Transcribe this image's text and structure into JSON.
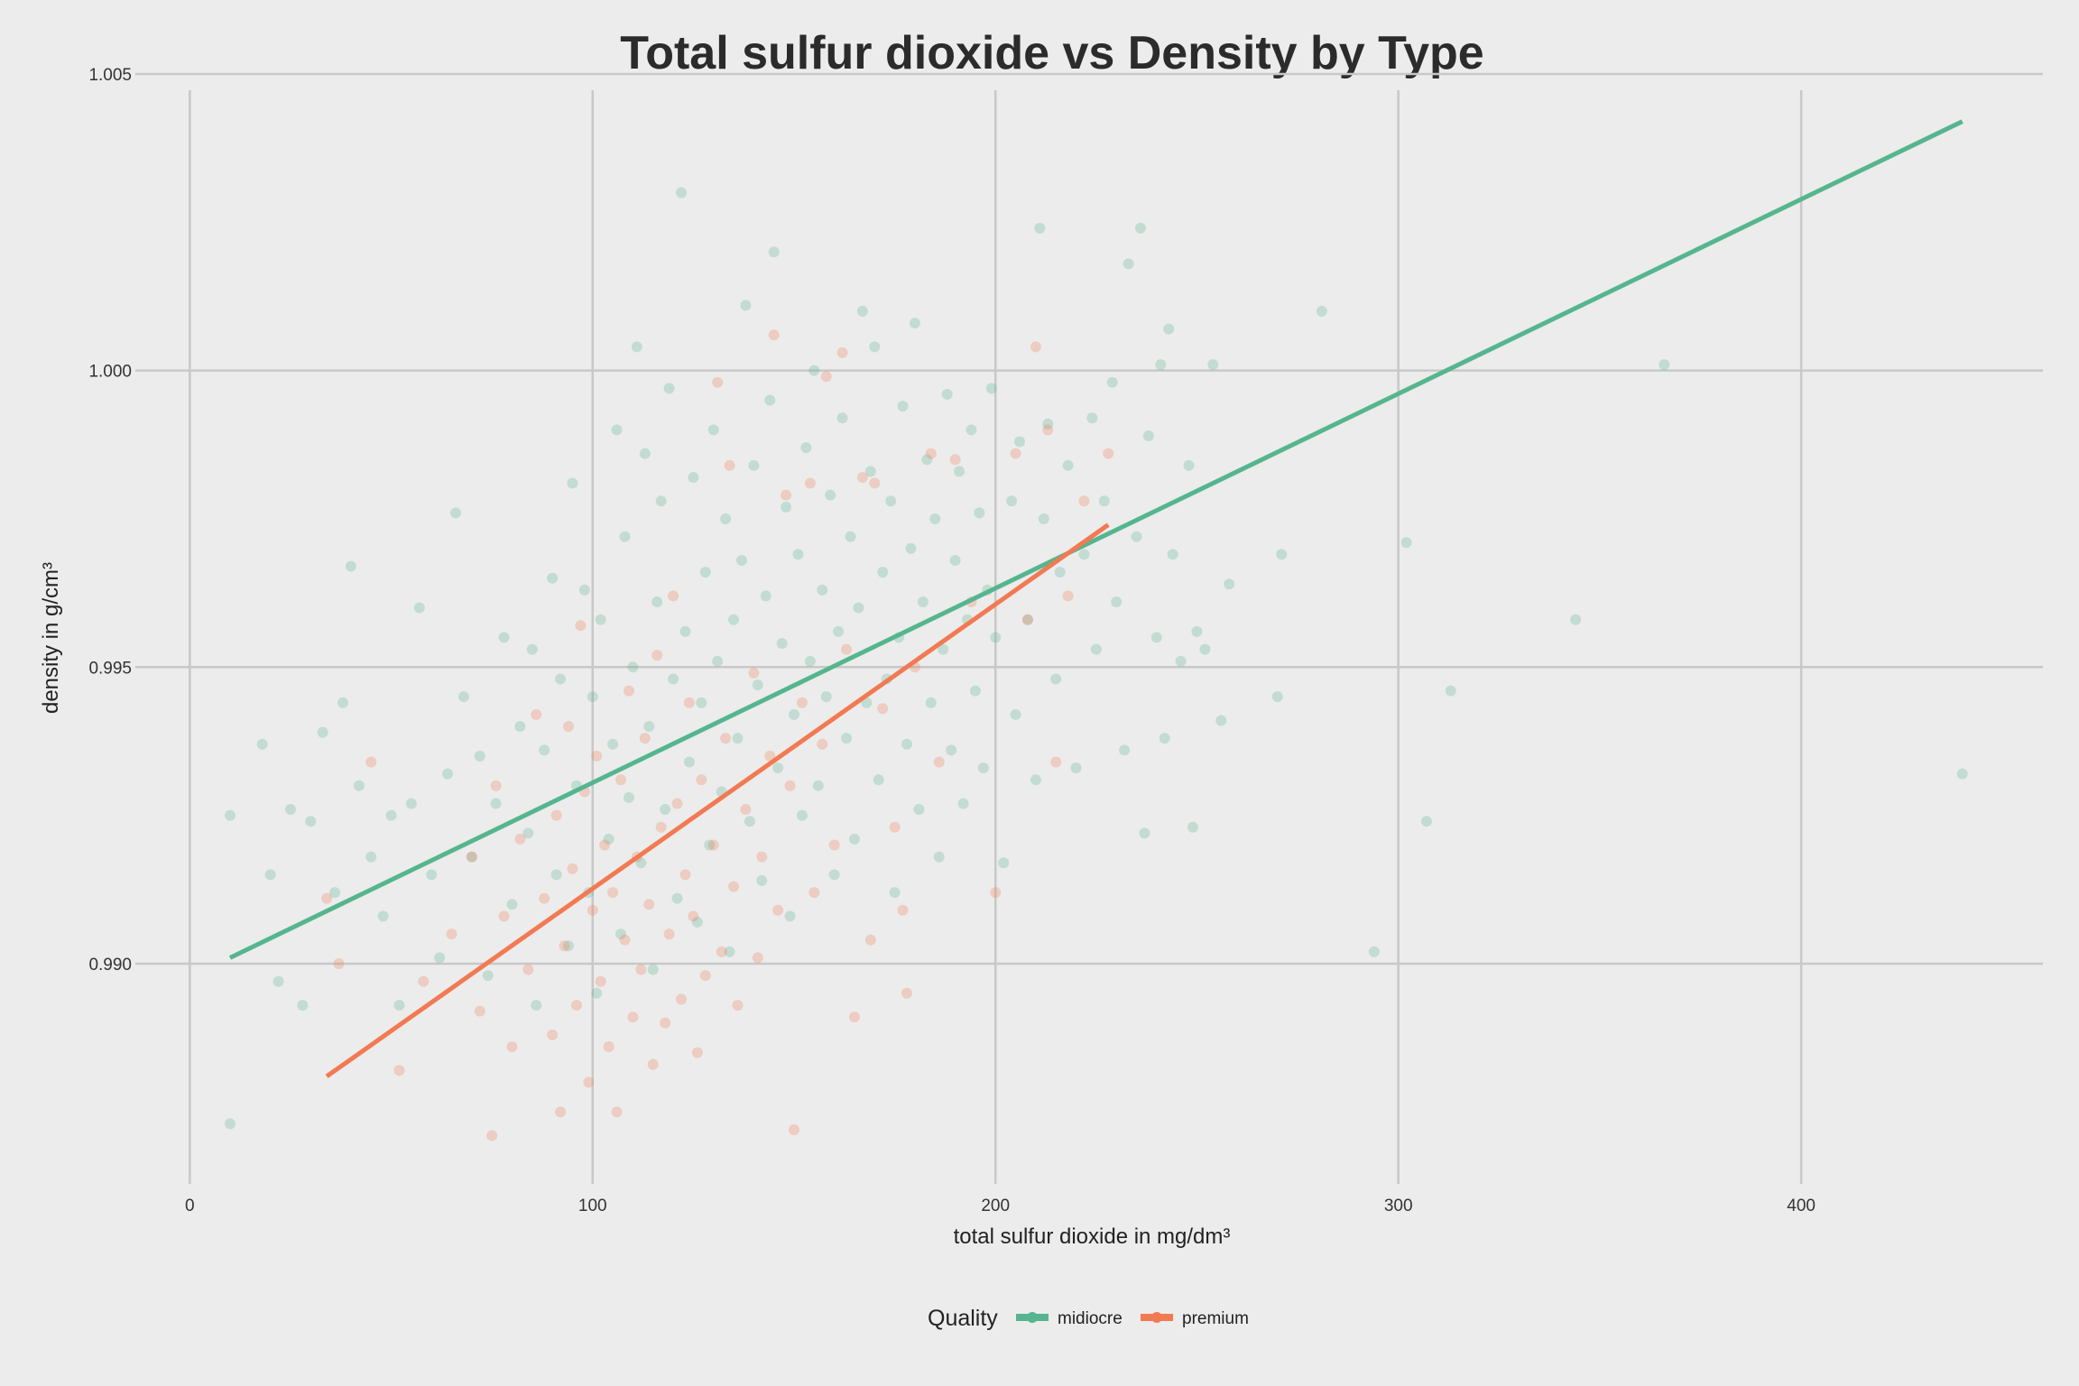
{
  "chart_data": {
    "type": "scatter",
    "title": "Total sulfur dioxide vs Density by Type",
    "xlabel": "total sulfur dioxide in mg/dm³",
    "ylabel": "density in g/cm³",
    "xlim": [
      -5,
      460
    ],
    "ylim": [
      0.9865,
      1.005
    ],
    "x_ticks": [
      0,
      100,
      200,
      300,
      400
    ],
    "x_tick_labels": [
      "0",
      "100",
      "200",
      "300",
      "400"
    ],
    "y_ticks": [
      0.99,
      0.995,
      1.0,
      1.005
    ],
    "y_tick_labels": [
      "0.990",
      "0.995",
      "1.000",
      "1.005"
    ],
    "grid": true,
    "legend": {
      "title": "Quality",
      "position": "bottom",
      "entries": [
        "midiocre",
        "premium"
      ]
    },
    "series": [
      {
        "name": "midiocre",
        "color": "#55b58f",
        "trend_line": {
          "x": [
            10,
            440
          ],
          "y": [
            0.9901,
            1.0042
          ]
        },
        "points": [
          [
            10,
            0.9873
          ],
          [
            10,
            0.9925
          ],
          [
            18,
            0.9937
          ],
          [
            20,
            0.9915
          ],
          [
            22,
            0.9897
          ],
          [
            25,
            0.9926
          ],
          [
            28,
            0.9893
          ],
          [
            30,
            0.9924
          ],
          [
            33,
            0.9939
          ],
          [
            36,
            0.9912
          ],
          [
            38,
            0.9944
          ],
          [
            40,
            0.9967
          ],
          [
            42,
            0.993
          ],
          [
            45,
            0.9918
          ],
          [
            48,
            0.9908
          ],
          [
            50,
            0.9925
          ],
          [
            52,
            0.9893
          ],
          [
            55,
            0.9927
          ],
          [
            57,
            0.996
          ],
          [
            60,
            0.9915
          ],
          [
            62,
            0.9901
          ],
          [
            64,
            0.9932
          ],
          [
            66,
            0.9976
          ],
          [
            68,
            0.9945
          ],
          [
            70,
            0.9918
          ],
          [
            72,
            0.9935
          ],
          [
            74,
            0.9898
          ],
          [
            76,
            0.9927
          ],
          [
            78,
            0.9955
          ],
          [
            80,
            0.991
          ],
          [
            82,
            0.994
          ],
          [
            84,
            0.9922
          ],
          [
            85,
            0.9953
          ],
          [
            86,
            0.9893
          ],
          [
            88,
            0.9936
          ],
          [
            90,
            0.9965
          ],
          [
            91,
            0.9915
          ],
          [
            92,
            0.9948
          ],
          [
            94,
            0.9903
          ],
          [
            95,
            0.9981
          ],
          [
            96,
            0.993
          ],
          [
            98,
            0.9963
          ],
          [
            99,
            0.9912
          ],
          [
            100,
            0.9945
          ],
          [
            101,
            0.9895
          ],
          [
            102,
            0.9958
          ],
          [
            104,
            0.9921
          ],
          [
            105,
            0.9937
          ],
          [
            106,
            0.999
          ],
          [
            107,
            0.9905
          ],
          [
            108,
            0.9972
          ],
          [
            109,
            0.9928
          ],
          [
            110,
            0.995
          ],
          [
            111,
            1.0004
          ],
          [
            112,
            0.9917
          ],
          [
            113,
            0.9986
          ],
          [
            114,
            0.994
          ],
          [
            115,
            0.9899
          ],
          [
            116,
            0.9961
          ],
          [
            117,
            0.9978
          ],
          [
            118,
            0.9926
          ],
          [
            119,
            0.9997
          ],
          [
            120,
            0.9948
          ],
          [
            121,
            0.9911
          ],
          [
            122,
            1.003
          ],
          [
            123,
            0.9956
          ],
          [
            124,
            0.9934
          ],
          [
            125,
            0.9982
          ],
          [
            126,
            0.9907
          ],
          [
            127,
            0.9944
          ],
          [
            128,
            0.9966
          ],
          [
            129,
            0.992
          ],
          [
            130,
            0.999
          ],
          [
            131,
            0.9951
          ],
          [
            132,
            0.9929
          ],
          [
            133,
            0.9975
          ],
          [
            134,
            0.9902
          ],
          [
            135,
            0.9958
          ],
          [
            136,
            0.9938
          ],
          [
            137,
            0.9968
          ],
          [
            138,
            1.0011
          ],
          [
            139,
            0.9924
          ],
          [
            140,
            0.9984
          ],
          [
            141,
            0.9947
          ],
          [
            142,
            0.9914
          ],
          [
            143,
            0.9962
          ],
          [
            144,
            0.9995
          ],
          [
            145,
            1.002
          ],
          [
            146,
            0.9933
          ],
          [
            147,
            0.9954
          ],
          [
            148,
            0.9977
          ],
          [
            149,
            0.9908
          ],
          [
            150,
            0.9942
          ],
          [
            151,
            0.9969
          ],
          [
            152,
            0.9925
          ],
          [
            153,
            0.9987
          ],
          [
            154,
            0.9951
          ],
          [
            155,
            1.0
          ],
          [
            156,
            0.993
          ],
          [
            157,
            0.9963
          ],
          [
            158,
            0.9945
          ],
          [
            159,
            0.9979
          ],
          [
            160,
            0.9915
          ],
          [
            161,
            0.9956
          ],
          [
            162,
            0.9992
          ],
          [
            163,
            0.9938
          ],
          [
            164,
            0.9972
          ],
          [
            165,
            0.9921
          ],
          [
            166,
            0.996
          ],
          [
            167,
            1.001
          ],
          [
            168,
            0.9944
          ],
          [
            169,
            0.9983
          ],
          [
            170,
            1.0004
          ],
          [
            171,
            0.9931
          ],
          [
            172,
            0.9966
          ],
          [
            173,
            0.9948
          ],
          [
            174,
            0.9978
          ],
          [
            175,
            0.9912
          ],
          [
            176,
            0.9955
          ],
          [
            177,
            0.9994
          ],
          [
            178,
            0.9937
          ],
          [
            179,
            0.997
          ],
          [
            180,
            1.0008
          ],
          [
            181,
            0.9926
          ],
          [
            182,
            0.9961
          ],
          [
            183,
            0.9985
          ],
          [
            184,
            0.9944
          ],
          [
            185,
            0.9975
          ],
          [
            186,
            0.9918
          ],
          [
            187,
            0.9953
          ],
          [
            188,
            0.9996
          ],
          [
            189,
            0.9936
          ],
          [
            190,
            0.9968
          ],
          [
            191,
            0.9983
          ],
          [
            192,
            0.9927
          ],
          [
            193,
            0.9958
          ],
          [
            194,
            0.999
          ],
          [
            195,
            0.9946
          ],
          [
            196,
            0.9976
          ],
          [
            197,
            0.9933
          ],
          [
            198,
            0.9963
          ],
          [
            199,
            0.9997
          ],
          [
            200,
            0.9955
          ],
          [
            202,
            0.9917
          ],
          [
            204,
            0.9978
          ],
          [
            205,
            0.9942
          ],
          [
            206,
            0.9988
          ],
          [
            208,
            0.9958
          ],
          [
            210,
            0.9931
          ],
          [
            211,
            1.0024
          ],
          [
            212,
            0.9975
          ],
          [
            213,
            0.9991
          ],
          [
            215,
            0.9948
          ],
          [
            216,
            0.9966
          ],
          [
            218,
            0.9984
          ],
          [
            220,
            0.9933
          ],
          [
            222,
            0.9969
          ],
          [
            224,
            0.9992
          ],
          [
            225,
            0.9953
          ],
          [
            227,
            0.9978
          ],
          [
            229,
            0.9998
          ],
          [
            230,
            0.9961
          ],
          [
            232,
            0.9936
          ],
          [
            233,
            1.0018
          ],
          [
            235,
            0.9972
          ],
          [
            236,
            1.0024
          ],
          [
            237,
            0.9922
          ],
          [
            238,
            0.9989
          ],
          [
            240,
            0.9955
          ],
          [
            241,
            1.0001
          ],
          [
            242,
            0.9938
          ],
          [
            243,
            1.0007
          ],
          [
            244,
            0.9969
          ],
          [
            246,
            0.9951
          ],
          [
            248,
            0.9984
          ],
          [
            249,
            0.9923
          ],
          [
            250,
            0.9956
          ],
          [
            252,
            0.9953
          ],
          [
            254,
            1.0001
          ],
          [
            256,
            0.9941
          ],
          [
            258,
            0.9964
          ],
          [
            270,
            0.9945
          ],
          [
            271,
            0.9969
          ],
          [
            281,
            1.001
          ],
          [
            294,
            0.9902
          ],
          [
            302,
            0.9971
          ],
          [
            307,
            0.9924
          ],
          [
            313,
            0.9946
          ],
          [
            344,
            0.9958
          ],
          [
            366,
            1.0001
          ],
          [
            440,
            0.9932
          ]
        ]
      },
      {
        "name": "premium",
        "color": "#f27a52",
        "trend_line": {
          "x": [
            34,
            228
          ],
          "y": [
            0.9881,
            0.9974
          ]
        },
        "points": [
          [
            34,
            0.9911
          ],
          [
            37,
            0.99
          ],
          [
            45,
            0.9934
          ],
          [
            52,
            0.9882
          ],
          [
            58,
            0.9897
          ],
          [
            65,
            0.9905
          ],
          [
            70,
            0.9918
          ],
          [
            72,
            0.9892
          ],
          [
            75,
            0.9871
          ],
          [
            76,
            0.993
          ],
          [
            78,
            0.9908
          ],
          [
            80,
            0.9886
          ],
          [
            82,
            0.9921
          ],
          [
            84,
            0.9899
          ],
          [
            86,
            0.9942
          ],
          [
            88,
            0.9911
          ],
          [
            90,
            0.9888
          ],
          [
            91,
            0.9925
          ],
          [
            92,
            0.9875
          ],
          [
            93,
            0.9903
          ],
          [
            94,
            0.994
          ],
          [
            95,
            0.9916
          ],
          [
            96,
            0.9893
          ],
          [
            97,
            0.9957
          ],
          [
            98,
            0.9929
          ],
          [
            99,
            0.988
          ],
          [
            100,
            0.9909
          ],
          [
            101,
            0.9935
          ],
          [
            102,
            0.9897
          ],
          [
            103,
            0.992
          ],
          [
            104,
            0.9886
          ],
          [
            105,
            0.9912
          ],
          [
            106,
            0.9875
          ],
          [
            107,
            0.9931
          ],
          [
            108,
            0.9904
          ],
          [
            109,
            0.9946
          ],
          [
            110,
            0.9891
          ],
          [
            111,
            0.9918
          ],
          [
            112,
            0.9899
          ],
          [
            113,
            0.9938
          ],
          [
            114,
            0.991
          ],
          [
            115,
            0.9883
          ],
          [
            116,
            0.9952
          ],
          [
            117,
            0.9923
          ],
          [
            118,
            0.989
          ],
          [
            119,
            0.9905
          ],
          [
            120,
            0.9962
          ],
          [
            121,
            0.9927
          ],
          [
            122,
            0.9894
          ],
          [
            123,
            0.9915
          ],
          [
            124,
            0.9944
          ],
          [
            125,
            0.9908
          ],
          [
            126,
            0.9885
          ],
          [
            127,
            0.9931
          ],
          [
            128,
            0.9898
          ],
          [
            130,
            0.992
          ],
          [
            131,
            0.9998
          ],
          [
            132,
            0.9902
          ],
          [
            133,
            0.9938
          ],
          [
            134,
            0.9984
          ],
          [
            135,
            0.9913
          ],
          [
            136,
            0.9893
          ],
          [
            138,
            0.9926
          ],
          [
            140,
            0.9949
          ],
          [
            141,
            0.9901
          ],
          [
            142,
            0.9918
          ],
          [
            144,
            0.9935
          ],
          [
            145,
            1.0006
          ],
          [
            146,
            0.9909
          ],
          [
            148,
            0.9979
          ],
          [
            149,
            0.993
          ],
          [
            150,
            0.9872
          ],
          [
            152,
            0.9944
          ],
          [
            154,
            0.9981
          ],
          [
            155,
            0.9912
          ],
          [
            157,
            0.9937
          ],
          [
            158,
            0.9999
          ],
          [
            160,
            0.992
          ],
          [
            162,
            1.0003
          ],
          [
            163,
            0.9953
          ],
          [
            165,
            0.9891
          ],
          [
            167,
            0.9982
          ],
          [
            169,
            0.9904
          ],
          [
            170,
            0.9981
          ],
          [
            172,
            0.9943
          ],
          [
            175,
            0.9923
          ],
          [
            177,
            0.9909
          ],
          [
            178,
            0.9895
          ],
          [
            180,
            0.995
          ],
          [
            184,
            0.9986
          ],
          [
            186,
            0.9934
          ],
          [
            190,
            0.9985
          ],
          [
            194,
            0.9961
          ],
          [
            200,
            0.9912
          ],
          [
            205,
            0.9986
          ],
          [
            208,
            0.9958
          ],
          [
            210,
            1.0004
          ],
          [
            213,
            0.999
          ],
          [
            215,
            0.9934
          ],
          [
            218,
            0.9962
          ],
          [
            222,
            0.9978
          ],
          [
            228,
            0.9986
          ]
        ]
      }
    ]
  }
}
